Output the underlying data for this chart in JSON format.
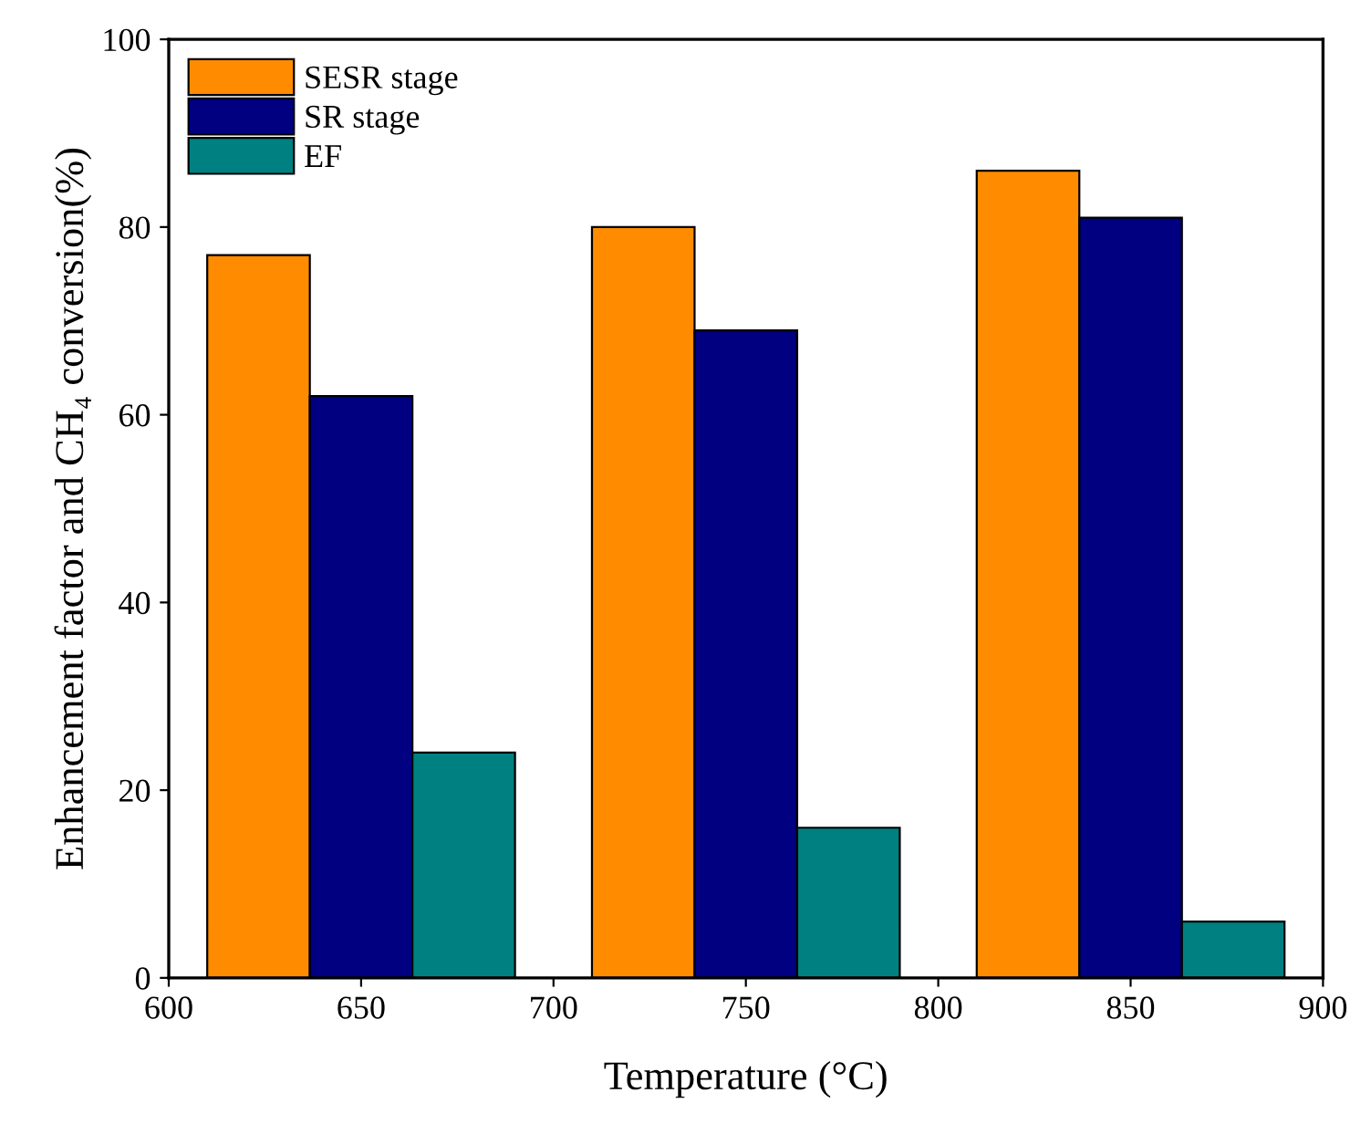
{
  "chart_data": {
    "type": "bar",
    "xlabel": "Temperature (°C)",
    "ylabel": "Enhancement factor and CH₄ conversion(%)",
    "x": [
      650,
      750,
      850
    ],
    "series": [
      {
        "name": "SESR stage",
        "color": "#ff8c00",
        "values": [
          77,
          80,
          86
        ]
      },
      {
        "name": "SR stage",
        "color": "#000080",
        "values": [
          62,
          69,
          81
        ]
      },
      {
        "name": "EF",
        "color": "#008080",
        "values": [
          24,
          16,
          6
        ]
      }
    ],
    "xlim": [
      600,
      900
    ],
    "xticks": [
      600,
      650,
      700,
      750,
      800,
      850,
      900
    ],
    "ylim": [
      0,
      100
    ],
    "yticks": [
      0,
      20,
      40,
      60,
      80,
      100
    ],
    "grid": false,
    "legend": "top left"
  }
}
